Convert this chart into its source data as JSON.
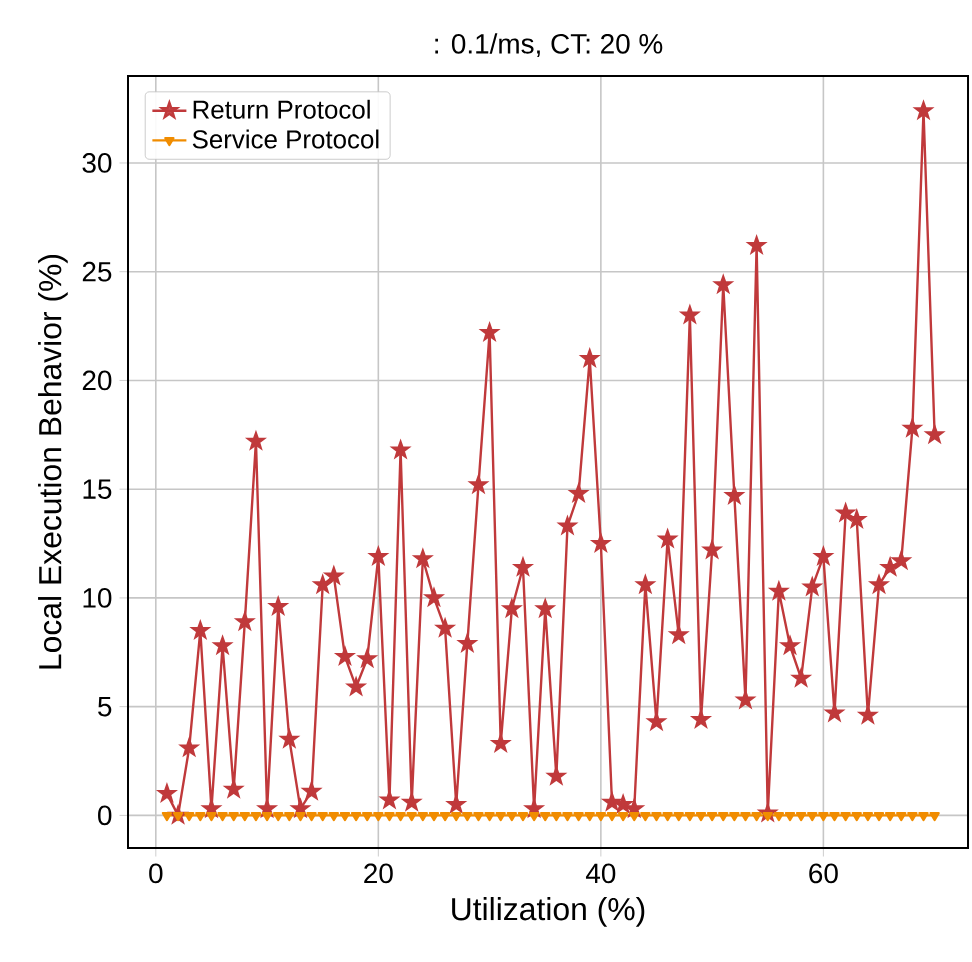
{
  "chart_data": {
    "type": "line",
    "title": ": 0.1/ms, CT: 20 %",
    "xlabel": "Utilization (%)",
    "ylabel": "Local Execution Behavior (%)",
    "x": [
      1,
      2,
      3,
      4,
      5,
      6,
      7,
      8,
      9,
      10,
      11,
      12,
      13,
      14,
      15,
      16,
      17,
      18,
      19,
      20,
      21,
      22,
      23,
      24,
      25,
      26,
      27,
      28,
      29,
      30,
      31,
      32,
      33,
      34,
      35,
      36,
      37,
      38,
      39,
      40,
      41,
      42,
      43,
      44,
      45,
      46,
      47,
      48,
      49,
      50,
      51,
      52,
      53,
      54,
      55,
      56,
      57,
      58,
      59,
      60,
      61,
      62,
      63,
      64,
      65,
      66,
      67,
      68,
      69,
      70
    ],
    "series": [
      {
        "name": "Return Protocol",
        "color": "#c0393b",
        "marker": "star",
        "values": [
          1.0,
          0.0,
          3.1,
          8.5,
          0.3,
          7.8,
          1.2,
          8.9,
          17.2,
          0.3,
          9.6,
          3.5,
          0.3,
          1.1,
          10.6,
          11.0,
          7.3,
          5.9,
          7.2,
          11.9,
          0.7,
          16.8,
          0.6,
          11.8,
          10.0,
          8.6,
          0.5,
          7.9,
          15.2,
          22.2,
          3.3,
          9.5,
          11.4,
          0.3,
          9.5,
          1.8,
          13.3,
          14.8,
          21.0,
          12.5,
          0.6,
          0.5,
          0.3,
          10.6,
          4.3,
          12.7,
          8.3,
          23.0,
          4.4,
          12.2,
          24.4,
          14.7,
          5.3,
          26.2,
          0.1,
          10.3,
          7.8,
          6.3,
          10.5,
          11.9,
          4.7,
          13.9,
          13.6,
          4.6,
          10.6,
          11.4,
          11.7,
          17.8,
          32.4,
          17.5
        ]
      },
      {
        "name": "Service Protocol",
        "color": "#f08c00",
        "marker": "triangle",
        "values": [
          0,
          0,
          0,
          0,
          0,
          0,
          0,
          0,
          0,
          0,
          0,
          0,
          0,
          0,
          0,
          0,
          0,
          0,
          0,
          0,
          0,
          0,
          0,
          0,
          0,
          0,
          0,
          0,
          0,
          0,
          0,
          0,
          0,
          0,
          0,
          0,
          0,
          0,
          0,
          0,
          0,
          0,
          0,
          0,
          0,
          0,
          0,
          0,
          0,
          0,
          0,
          0,
          0,
          0,
          0,
          0,
          0,
          0,
          0,
          0,
          0,
          0,
          0,
          0,
          0,
          0,
          0,
          0,
          0,
          0
        ]
      }
    ],
    "xlim": [
      -2.5,
      73
    ],
    "xticks": [
      0,
      20,
      40,
      60
    ],
    "ylim": [
      -1.5,
      34
    ],
    "yticks": [
      0,
      5,
      10,
      15,
      20,
      25,
      30
    ],
    "grid": true,
    "legend": "top left",
    "line_style": "solid"
  }
}
